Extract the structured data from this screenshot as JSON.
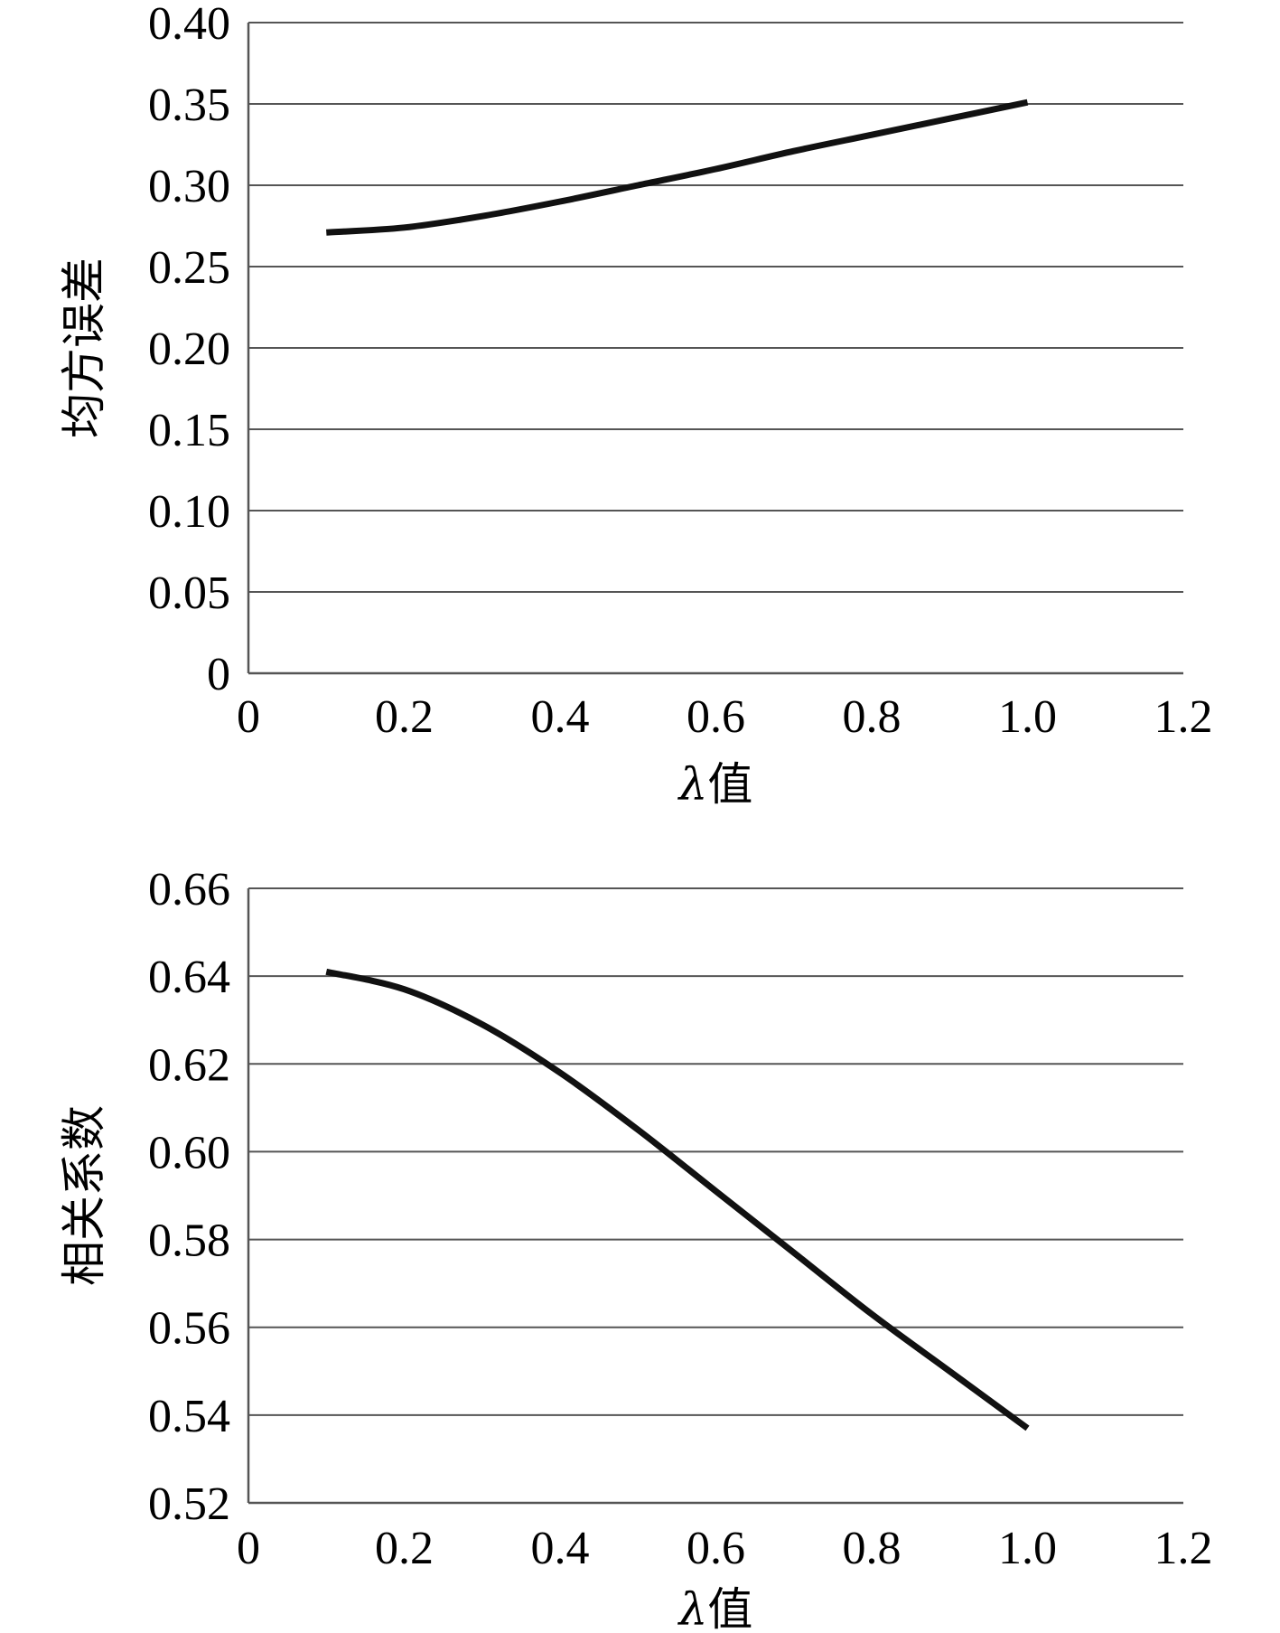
{
  "chart_data": [
    {
      "type": "line",
      "xlabel_symbol": "λ",
      "xlabel_text": "值",
      "ylabel": "均方误差",
      "xlim": [
        0,
        1.2
      ],
      "ylim": [
        0,
        0.4
      ],
      "x_ticks": [
        "0",
        "0.2",
        "0.4",
        "0.6",
        "0.8",
        "1.0",
        "1.2"
      ],
      "y_ticks": [
        "0",
        "0.05",
        "0.10",
        "0.15",
        "0.20",
        "0.25",
        "0.30",
        "0.35",
        "0.40"
      ],
      "grid": true,
      "line_color": "#111111",
      "series": [
        {
          "x": [
            0.1,
            0.2,
            0.3,
            0.4,
            0.5,
            0.6,
            0.7,
            0.8,
            0.9,
            1.0
          ],
          "values": [
            0.271,
            0.274,
            0.281,
            0.29,
            0.3,
            0.31,
            0.321,
            0.331,
            0.341,
            0.351
          ]
        }
      ]
    },
    {
      "type": "line",
      "xlabel_symbol": "λ",
      "xlabel_text": "值",
      "ylabel": "相关系数",
      "xlim": [
        0,
        1.2
      ],
      "ylim": [
        0.52,
        0.66
      ],
      "x_ticks": [
        "0",
        "0.2",
        "0.4",
        "0.6",
        "0.8",
        "1.0",
        "1.2"
      ],
      "y_ticks": [
        "0.52",
        "0.54",
        "0.56",
        "0.58",
        "0.60",
        "0.62",
        "0.64",
        "0.66"
      ],
      "grid": true,
      "line_color": "#111111",
      "series": [
        {
          "x": [
            0.1,
            0.2,
            0.3,
            0.4,
            0.5,
            0.6,
            0.7,
            0.8,
            0.9,
            1.0
          ],
          "values": [
            0.641,
            0.637,
            0.629,
            0.618,
            0.605,
            0.591,
            0.577,
            0.563,
            0.55,
            0.537
          ]
        }
      ]
    }
  ]
}
